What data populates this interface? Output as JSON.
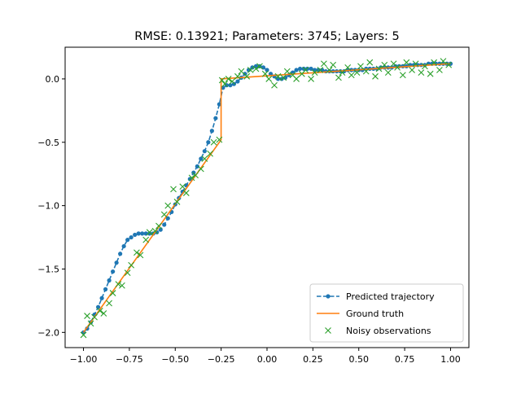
{
  "chart_data": {
    "type": "line",
    "title": "RMSE: 0.13921; Parameters: 3745; Layers: 5",
    "xlabel": "",
    "ylabel": "",
    "xlim": [
      -1.1,
      1.1
    ],
    "ylim": [
      -2.12,
      0.25
    ],
    "xticks": [
      -1.0,
      -0.75,
      -0.5,
      -0.25,
      0.0,
      0.25,
      0.5,
      0.75,
      1.0
    ],
    "xtick_labels": [
      "−1.00",
      "−0.75",
      "−0.50",
      "−0.25",
      "0.00",
      "0.25",
      "0.50",
      "0.75",
      "1.00"
    ],
    "yticks": [
      0.0,
      -0.5,
      -1.0,
      -1.5,
      -2.0
    ],
    "ytick_labels": [
      "0.0",
      "−0.5",
      "−1.0",
      "−1.5",
      "−2.0"
    ],
    "grid": false,
    "legend_position": "lower-right",
    "colors": {
      "predicted": "#1f77b4",
      "truth": "#ff7f0e",
      "noisy": "#2ca02c"
    },
    "series": [
      {
        "name": "Predicted trajectory",
        "style": "dashed-dots",
        "x": [
          -1.0,
          -0.98,
          -0.96,
          -0.94,
          -0.92,
          -0.9,
          -0.88,
          -0.86,
          -0.84,
          -0.82,
          -0.8,
          -0.78,
          -0.76,
          -0.74,
          -0.72,
          -0.7,
          -0.68,
          -0.66,
          -0.64,
          -0.62,
          -0.6,
          -0.58,
          -0.56,
          -0.54,
          -0.52,
          -0.5,
          -0.48,
          -0.46,
          -0.44,
          -0.42,
          -0.4,
          -0.38,
          -0.36,
          -0.34,
          -0.32,
          -0.3,
          -0.28,
          -0.26,
          -0.24,
          -0.22,
          -0.2,
          -0.18,
          -0.16,
          -0.14,
          -0.12,
          -0.1,
          -0.08,
          -0.06,
          -0.04,
          -0.02,
          0.0,
          0.02,
          0.04,
          0.06,
          0.08,
          0.1,
          0.12,
          0.14,
          0.16,
          0.18,
          0.2,
          0.22,
          0.24,
          0.26,
          0.28,
          0.3,
          0.32,
          0.34,
          0.36,
          0.38,
          0.4,
          0.42,
          0.44,
          0.46,
          0.48,
          0.5,
          0.52,
          0.54,
          0.56,
          0.58,
          0.6,
          0.62,
          0.64,
          0.66,
          0.68,
          0.7,
          0.72,
          0.74,
          0.76,
          0.78,
          0.8,
          0.82,
          0.84,
          0.86,
          0.88,
          0.9,
          0.92,
          0.94,
          0.96,
          0.98,
          1.0
        ],
        "y": [
          -2.0,
          -1.97,
          -1.92,
          -1.86,
          -1.8,
          -1.73,
          -1.66,
          -1.59,
          -1.52,
          -1.45,
          -1.38,
          -1.32,
          -1.27,
          -1.25,
          -1.23,
          -1.22,
          -1.22,
          -1.22,
          -1.22,
          -1.22,
          -1.21,
          -1.19,
          -1.15,
          -1.1,
          -1.05,
          -0.99,
          -0.94,
          -0.89,
          -0.84,
          -0.79,
          -0.74,
          -0.69,
          -0.63,
          -0.57,
          -0.5,
          -0.41,
          -0.31,
          -0.2,
          -0.07,
          -0.05,
          -0.05,
          -0.04,
          -0.02,
          0.01,
          0.04,
          0.07,
          0.09,
          0.1,
          0.1,
          0.09,
          0.07,
          0.04,
          0.02,
          0.0,
          0.0,
          0.01,
          0.03,
          0.05,
          0.07,
          0.08,
          0.08,
          0.08,
          0.08,
          0.07,
          0.07,
          0.07,
          0.06,
          0.06,
          0.06,
          0.06,
          0.06,
          0.06,
          0.07,
          0.07,
          0.07,
          0.07,
          0.07,
          0.08,
          0.08,
          0.08,
          0.08,
          0.09,
          0.09,
          0.09,
          0.09,
          0.1,
          0.1,
          0.1,
          0.1,
          0.11,
          0.11,
          0.11,
          0.11,
          0.11,
          0.12,
          0.12,
          0.12,
          0.12,
          0.12,
          0.12,
          0.12
        ]
      },
      {
        "name": "Ground truth",
        "style": "solid",
        "x": [
          -1.0,
          -0.25,
          -0.25,
          1.0
        ],
        "y": [
          -2.0,
          -0.48,
          0.0,
          0.12
        ]
      },
      {
        "name": "Noisy observations",
        "style": "x-markers",
        "x": [
          -1.0,
          -0.98,
          -0.96,
          -0.94,
          -0.91,
          -0.89,
          -0.86,
          -0.84,
          -0.81,
          -0.79,
          -0.76,
          -0.74,
          -0.71,
          -0.69,
          -0.66,
          -0.64,
          -0.61,
          -0.59,
          -0.56,
          -0.54,
          -0.51,
          -0.49,
          -0.46,
          -0.44,
          -0.41,
          -0.39,
          -0.36,
          -0.34,
          -0.31,
          -0.29,
          -0.26,
          -0.245,
          -0.23,
          -0.21,
          -0.19,
          -0.16,
          -0.14,
          -0.11,
          -0.09,
          -0.06,
          -0.04,
          -0.01,
          0.01,
          0.04,
          0.06,
          0.09,
          0.11,
          0.14,
          0.16,
          0.19,
          0.21,
          0.24,
          0.26,
          0.29,
          0.31,
          0.34,
          0.36,
          0.39,
          0.41,
          0.44,
          0.46,
          0.49,
          0.51,
          0.54,
          0.56,
          0.59,
          0.61,
          0.64,
          0.66,
          0.69,
          0.71,
          0.74,
          0.76,
          0.79,
          0.81,
          0.84,
          0.86,
          0.89,
          0.91,
          0.94,
          0.96,
          0.99
        ],
        "y": [
          -2.02,
          -1.87,
          -1.93,
          -1.88,
          -1.83,
          -1.85,
          -1.77,
          -1.69,
          -1.62,
          -1.63,
          -1.53,
          -1.47,
          -1.37,
          -1.39,
          -1.27,
          -1.21,
          -1.2,
          -1.16,
          -1.07,
          -1.0,
          -0.87,
          -0.97,
          -0.85,
          -0.9,
          -0.78,
          -0.76,
          -0.71,
          -0.63,
          -0.59,
          -0.5,
          -0.48,
          -0.01,
          -0.04,
          0.0,
          -0.02,
          0.02,
          0.06,
          0.02,
          0.07,
          0.08,
          0.1,
          0.04,
          0.0,
          -0.05,
          0.02,
          0.01,
          0.06,
          0.03,
          0.0,
          0.04,
          0.07,
          0.0,
          0.05,
          0.07,
          0.12,
          0.07,
          0.11,
          0.01,
          0.05,
          0.09,
          0.03,
          0.05,
          0.1,
          0.06,
          0.13,
          0.02,
          0.08,
          0.11,
          0.05,
          0.12,
          0.09,
          0.03,
          0.13,
          0.07,
          0.12,
          0.05,
          0.1,
          0.04,
          0.13,
          0.07,
          0.14,
          0.11
        ]
      }
    ]
  }
}
